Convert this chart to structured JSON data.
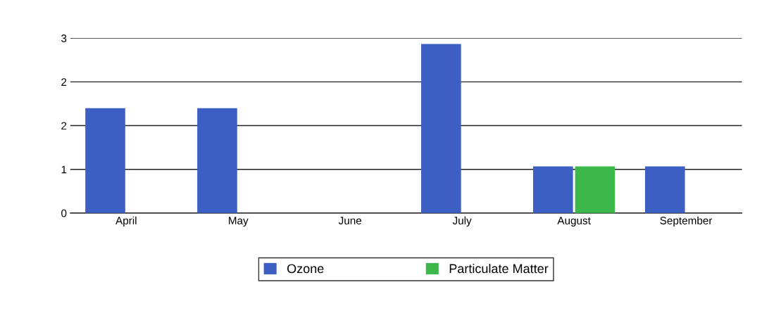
{
  "chart_data": {
    "type": "bar",
    "categories": [
      "April",
      "May",
      "June",
      "July",
      "August",
      "September"
    ],
    "series": [
      {
        "name": "Ozone",
        "color": "#3d5fc4",
        "values": [
          1.8,
          1.8,
          null,
          2.9,
          0.8,
          0.8
        ]
      },
      {
        "name": "Particulate Matter",
        "color": "#3cb84a",
        "values": [
          null,
          null,
          null,
          null,
          0.8,
          null
        ]
      }
    ],
    "ylim": [
      0,
      3
    ],
    "yticks": [
      {
        "value": 0,
        "label": "0"
      },
      {
        "value": 0.75,
        "label": "1"
      },
      {
        "value": 1.5,
        "label": "2"
      },
      {
        "value": 2.25,
        "label": "2"
      },
      {
        "value": 3,
        "label": "3"
      }
    ],
    "grid": "y",
    "legend": "bottom"
  }
}
